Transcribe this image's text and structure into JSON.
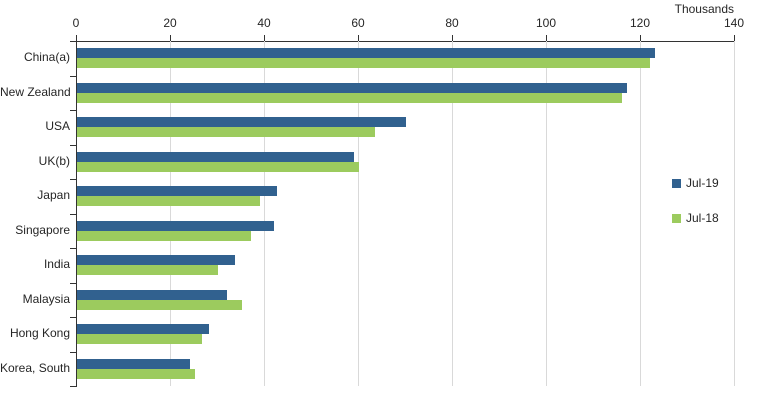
{
  "chart_data": {
    "type": "bar",
    "orientation": "horizontal",
    "axis_title": "Thousands",
    "categories": [
      "China(a)",
      "New Zealand",
      "USA",
      "UK(b)",
      "Japan",
      "Singapore",
      "India",
      "Malaysia",
      "Hong Kong",
      "Korea, South"
    ],
    "series": [
      {
        "name": "Jul-19",
        "color": "#31618F",
        "values": [
          123,
          117,
          70,
          59,
          42.5,
          42,
          33.5,
          32,
          28,
          24
        ]
      },
      {
        "name": "Jul-18",
        "color": "#9CCB5E",
        "values": [
          122,
          116,
          63.5,
          60,
          39,
          37,
          30,
          35,
          26.5,
          25
        ]
      }
    ],
    "xlim": [
      0,
      140
    ],
    "x_ticks": [
      0,
      20,
      40,
      60,
      80,
      100,
      120,
      140
    ],
    "grid": "vertical",
    "legend_position": "right-inside",
    "colors": {
      "axis": "#333333",
      "gridline": "#D9D9D9",
      "text": "#262626",
      "background": "#FFFFFF"
    }
  }
}
